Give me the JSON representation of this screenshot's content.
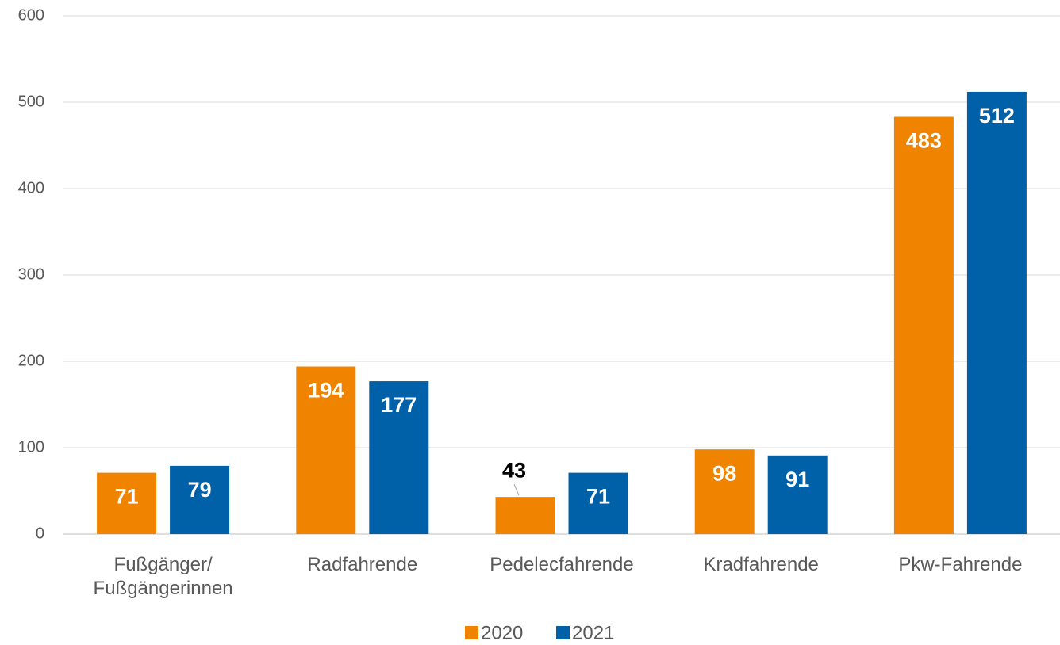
{
  "chart_data": {
    "type": "bar",
    "categories": [
      "Fußgänger/ Fußgängerinnen",
      "Radfahrende",
      "Pedelecfahrende",
      "Kradfahrende",
      "Pkw-Fahrende"
    ],
    "series": [
      {
        "name": "2020",
        "color": "#f08400",
        "values": [
          71,
          194,
          43,
          98,
          483
        ]
      },
      {
        "name": "2021",
        "color": "#0060a8",
        "values": [
          79,
          177,
          71,
          91,
          512
        ]
      }
    ],
    "ylim": [
      0,
      600
    ],
    "yticks": [
      0,
      100,
      200,
      300,
      400,
      500,
      600
    ],
    "grid": true,
    "legend": "bottom"
  }
}
